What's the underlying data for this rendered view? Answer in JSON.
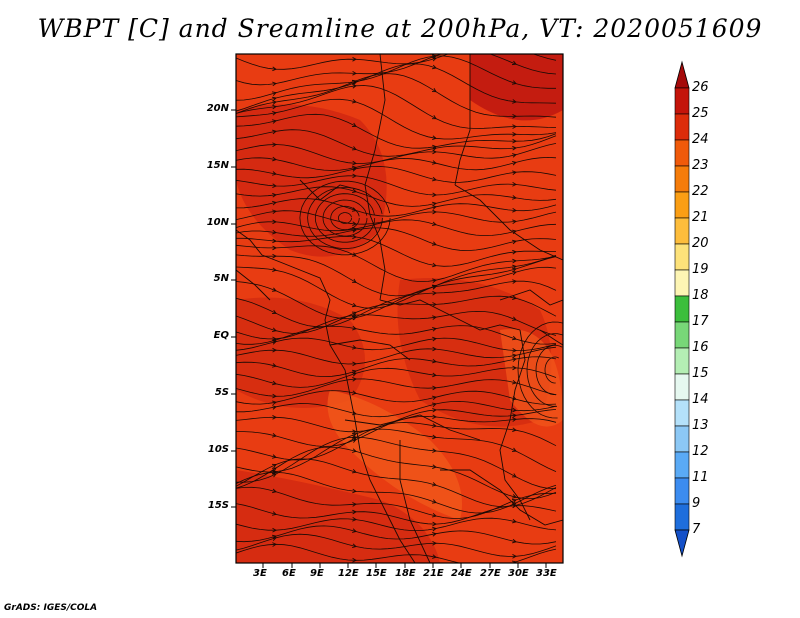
{
  "title": "WBPT [C] and Sreamline at 200hPa, VT: 2020051609",
  "footer": "GrADS: IGES/COLA",
  "map": {
    "lat_labels": [
      "20N",
      "15N",
      "10N",
      "5N",
      "EQ",
      "5S",
      "10S",
      "15S"
    ],
    "lon_labels": [
      "3E",
      "6E",
      "9E",
      "12E",
      "15E",
      "18E",
      "21E",
      "24E",
      "27E",
      "30E",
      "33E"
    ],
    "colors": {
      "base": "#e83c12",
      "dark": "#c41c10",
      "warm": "#f0541a",
      "coast": "#1a0a05",
      "streamline": "#1a0a05"
    }
  },
  "colorbar": {
    "labels": [
      "26",
      "25",
      "24",
      "23",
      "22",
      "21",
      "20",
      "19",
      "18",
      "17",
      "16",
      "15",
      "14",
      "13",
      "12",
      "11",
      "9",
      "7"
    ],
    "colors": [
      "#a50a0a",
      "#c4140a",
      "#dc2c0a",
      "#f05a0a",
      "#f57c0a",
      "#fa9e14",
      "#fdbd3c",
      "#fde27a",
      "#fdf5b4",
      "#3cbe3c",
      "#78d778",
      "#b4eeb4",
      "#e6f8f0",
      "#b4e1fa",
      "#8cc8f5",
      "#5aaaf5",
      "#3c8cf0",
      "#1e6edc",
      "#1450c8"
    ]
  },
  "chart_data": {
    "type": "heatmap",
    "title": "WBPT [C] and Sreamline at 200hPa, VT: 2020051609",
    "lat_ticks": [
      "20N",
      "15N",
      "10N",
      "5N",
      "EQ",
      "5S",
      "10S",
      "15S"
    ],
    "lon_ticks": [
      "3E",
      "6E",
      "9E",
      "12E",
      "15E",
      "18E",
      "21E",
      "24E",
      "27E",
      "30E",
      "33E"
    ],
    "colorbar_levels": [
      7,
      9,
      11,
      12,
      13,
      14,
      15,
      16,
      17,
      18,
      19,
      20,
      21,
      22,
      23,
      24,
      25,
      26
    ],
    "dominant_range": [
      23,
      25
    ]
  }
}
